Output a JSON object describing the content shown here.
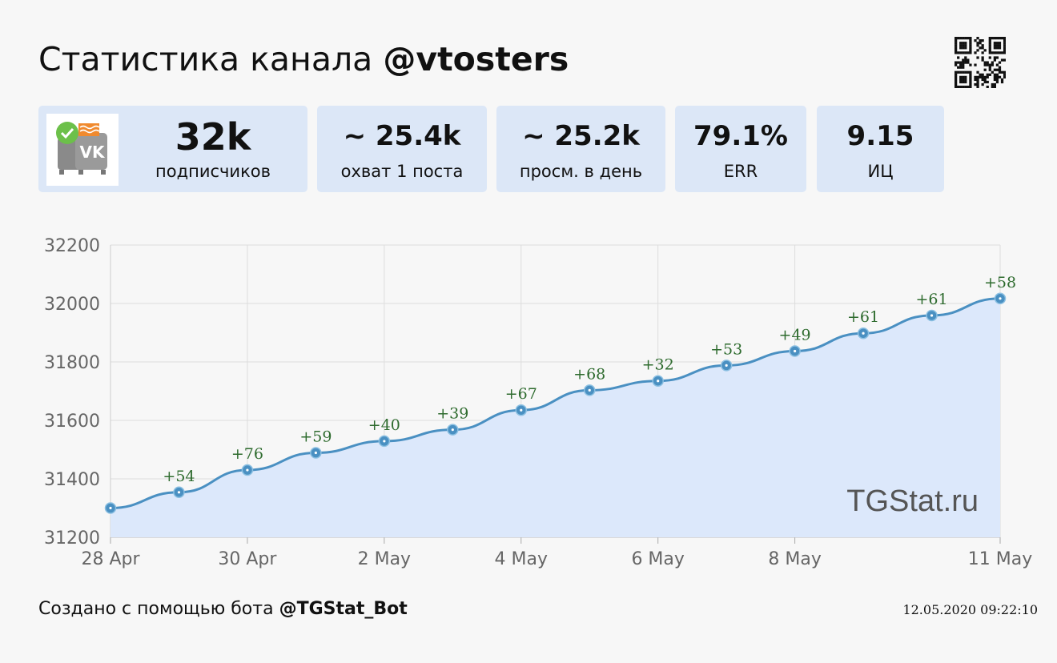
{
  "header": {
    "title_prefix": "Статистика канала",
    "channel": "@vtosters"
  },
  "cards": [
    {
      "value": "32k",
      "label": "подписчиков"
    },
    {
      "value": "~ 25.4k",
      "label": "охват 1 поста"
    },
    {
      "value": "~ 25.2k",
      "label": "просм. в день"
    },
    {
      "value": "79.1%",
      "label": "ERR"
    },
    {
      "value": "9.15",
      "label": "ИЦ"
    }
  ],
  "avatar": {
    "label": "VK"
  },
  "chart_data": {
    "type": "area",
    "x": [
      "28 Apr",
      "29 Apr",
      "30 Apr",
      "1 May",
      "2 May",
      "3 May",
      "4 May",
      "5 May",
      "6 May",
      "7 May",
      "8 May",
      "9 May",
      "10 May",
      "11 May"
    ],
    "x_ticks": [
      "28 Apr",
      "30 Apr",
      "2 May",
      "4 May",
      "6 May",
      "8 May",
      "11 May"
    ],
    "y": [
      31300,
      31354,
      31430,
      31489,
      31529,
      31568,
      31635,
      31703,
      31735,
      31788,
      31837,
      31898,
      31959,
      32017
    ],
    "delta_labels": [
      "",
      "+54",
      "+76",
      "+59",
      "+40",
      "+39",
      "+67",
      "+68",
      "+32",
      "+53",
      "+49",
      "+61",
      "+61",
      "+58"
    ],
    "y_ticks": [
      31200,
      31400,
      31600,
      31800,
      32000,
      32200
    ],
    "ylim": [
      31200,
      32200
    ],
    "grid": true,
    "line_color": "#4a90c2",
    "fill_color": "#dce8fb",
    "label_color": "#2e6b2e",
    "watermark": "TGStat.ru"
  },
  "footer": {
    "text": "Создано с помощью бота",
    "bot": "@TGStat_Bot",
    "timestamp": "12.05.2020 09:22:10"
  }
}
